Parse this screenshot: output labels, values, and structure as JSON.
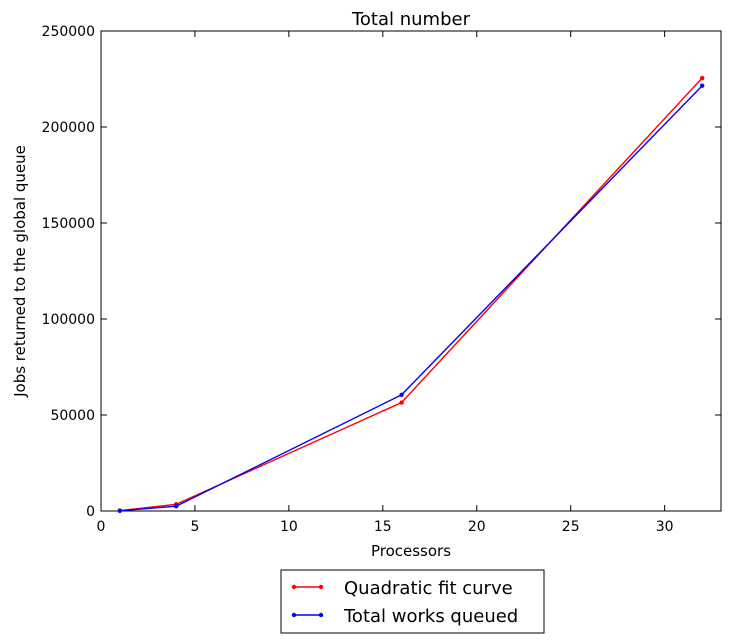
{
  "chart_data": {
    "type": "line",
    "title": "Total number",
    "xlabel": "Processors",
    "ylabel": "Jobs returned to the global queue",
    "xlim": [
      0,
      33
    ],
    "ylim": [
      0,
      250000
    ],
    "x_ticks": [
      0,
      5,
      10,
      15,
      20,
      25,
      30
    ],
    "y_ticks": [
      0,
      50000,
      100000,
      150000,
      200000,
      250000
    ],
    "grid": false,
    "legend_position": "below plot",
    "series": [
      {
        "name": "Quadratic fit curve",
        "color": "#ff0000",
        "x": [
          1,
          4,
          16,
          32
        ],
        "y": [
          200,
          3500,
          56500,
          225500
        ]
      },
      {
        "name": "Total works queued",
        "color": "#0000ff",
        "x": [
          1,
          4,
          16,
          32
        ],
        "y": [
          100,
          2500,
          60500,
          221500
        ]
      }
    ]
  }
}
